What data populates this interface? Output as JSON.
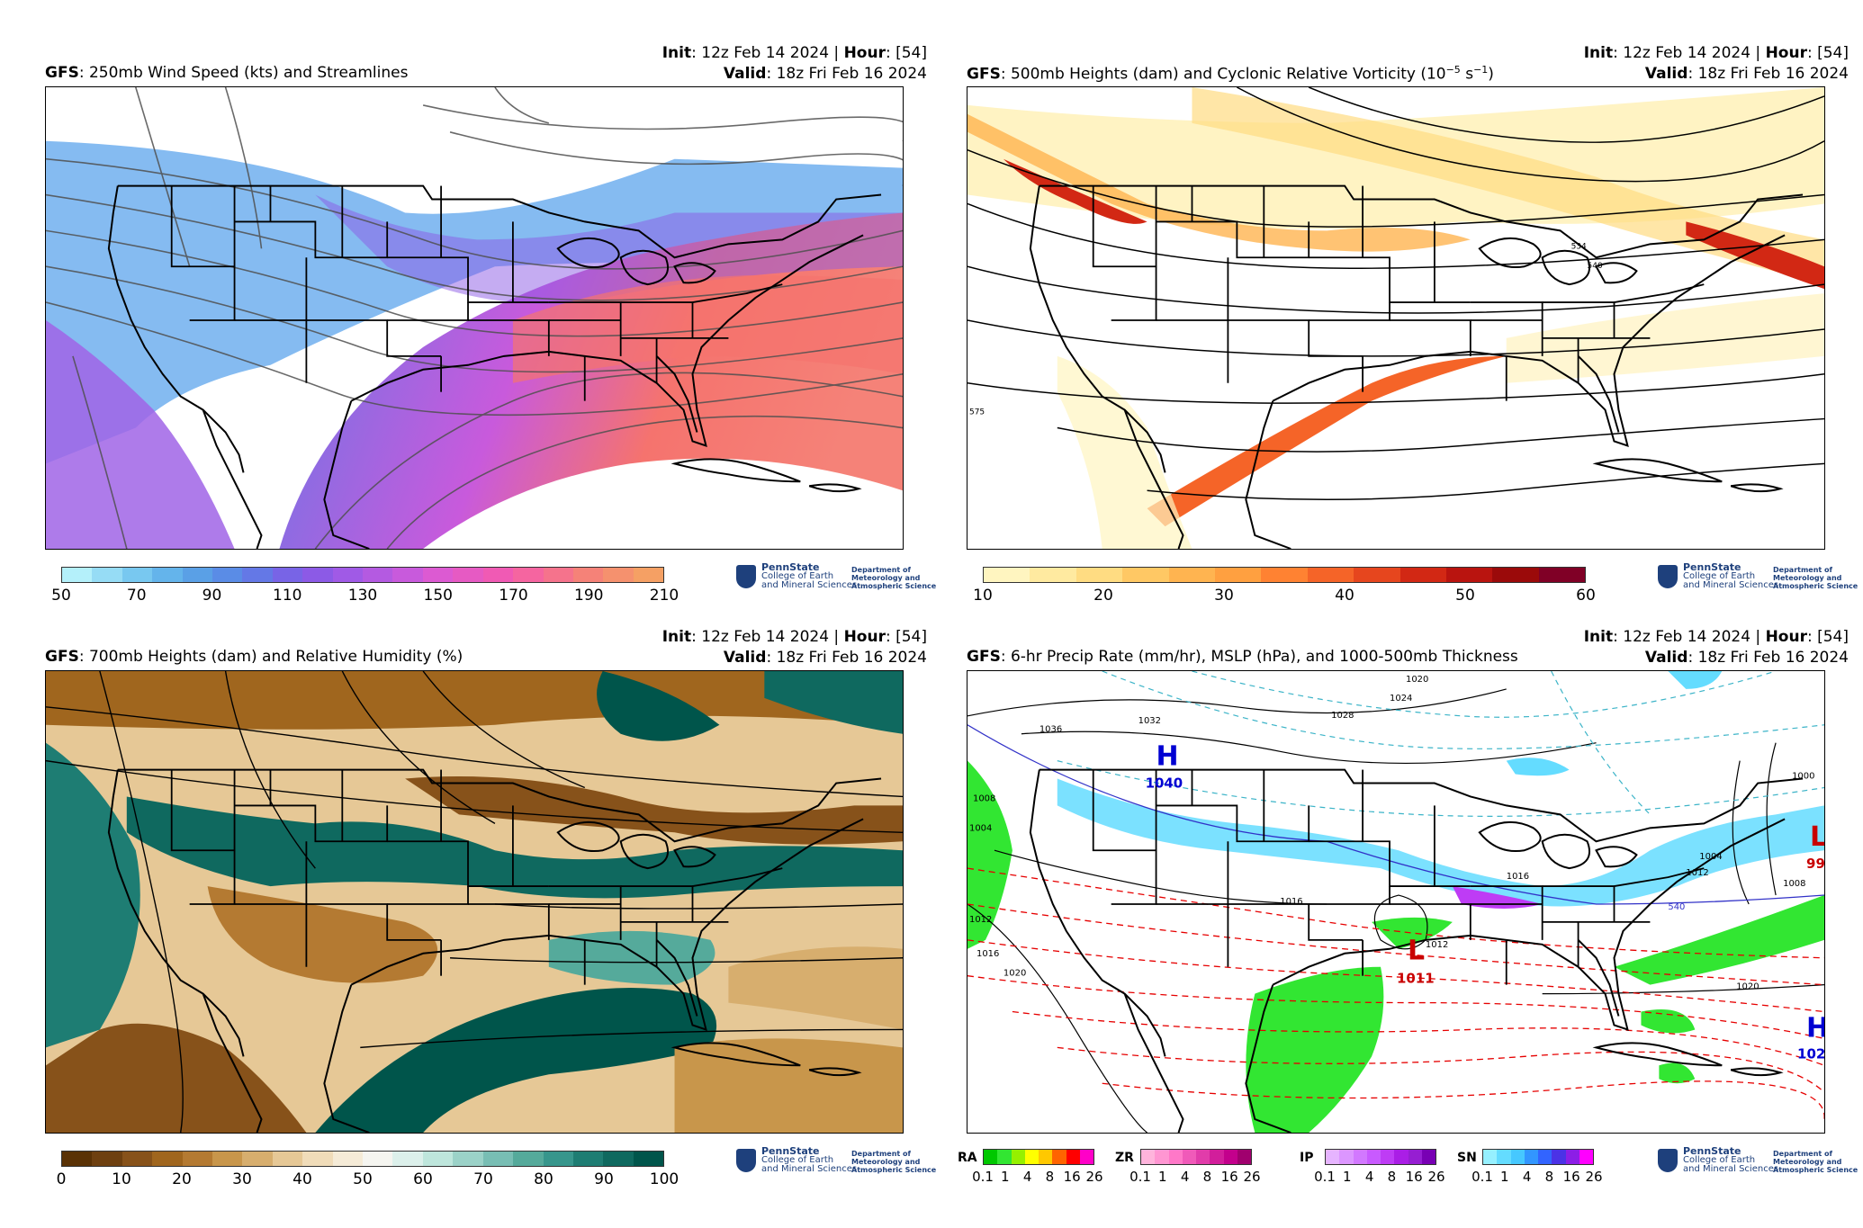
{
  "panels": [
    {
      "id": "p1",
      "model": "GFS",
      "title": ": 250mb Wind Speed (kts) and Streamlines",
      "init_label": "Init",
      "init_value": ": 12z Feb 14 2024 | ",
      "hour_label": "Hour",
      "hour_value": ": [54]",
      "valid_label": "Valid",
      "valid_value": ": 18z Fri Feb 16 2024",
      "colorbar_ticks": [
        "50",
        "70",
        "90",
        "110",
        "130",
        "150",
        "170",
        "190",
        "210"
      ],
      "colorbar_colors": [
        "#b4f0fa",
        "#96dcf5",
        "#78c8f0",
        "#64b4eb",
        "#5aa0e6",
        "#5a8ce6",
        "#6478e6",
        "#7864e6",
        "#8c5ae6",
        "#a05ae6",
        "#b45ae1",
        "#c85adc",
        "#dc5ad2",
        "#e65ac3",
        "#f05ab4",
        "#f565a0",
        "#f5738c",
        "#f58278",
        "#f5916e",
        "#f5a064"
      ]
    },
    {
      "id": "p2",
      "model": "GFS",
      "title": ": 500mb Heights (dam) and Cyclonic Relative Vorticity (10",
      "title_sup1": "−5",
      "title_mid": " s",
      "title_sup2": "−1",
      "title_end": ")",
      "init_label": "Init",
      "init_value": ": 12z Feb 14 2024 | ",
      "hour_label": "Hour",
      "hour_value": ": [54]",
      "valid_label": "Valid",
      "valid_value": ": 18z Fri Feb 16 2024",
      "colorbar_ticks": [
        "10",
        "20",
        "30",
        "40",
        "50",
        "60"
      ],
      "colorbar_colors": [
        "#fff5c0",
        "#ffeaa0",
        "#ffdc82",
        "#ffc864",
        "#ffb450",
        "#ffa040",
        "#ff8232",
        "#f56428",
        "#e6461e",
        "#d22814",
        "#b9140f",
        "#9b0a0a",
        "#800026"
      ],
      "contour_labels": [
        "575",
        "534",
        "540"
      ]
    },
    {
      "id": "p3",
      "model": "GFS",
      "title": ": 700mb Heights (dam) and Relative Humidity (%)",
      "init_label": "Init",
      "init_value": ": 12z Feb 14 2024 | ",
      "hour_label": "Hour",
      "hour_value": ": [54]",
      "valid_label": "Valid",
      "valid_value": ": 18z Fri Feb 16 2024",
      "colorbar_ticks": [
        "0",
        "10",
        "20",
        "30",
        "40",
        "50",
        "60",
        "70",
        "80",
        "90",
        "100"
      ],
      "colorbar_colors": [
        "#5a3205",
        "#6e4010",
        "#87521a",
        "#a0661e",
        "#b47a32",
        "#c8964b",
        "#d7ae6e",
        "#e6c896",
        "#f0dcb9",
        "#f5ebd7",
        "#f5f5f0",
        "#dcf0eb",
        "#bee6dc",
        "#9bd2c8",
        "#78beb4",
        "#55aa9b",
        "#37968c",
        "#1e7d73",
        "#0f695f",
        "#00554b"
      ]
    },
    {
      "id": "p4",
      "model": "GFS",
      "title": ": 6-hr Precip Rate (mm/hr), MSLP (hPa), and 1000-500mb Thickness",
      "init_label": "Init",
      "init_value": ": 12z Feb 14 2024 | ",
      "hour_label": "Hour",
      "hour_value": ": [54]",
      "valid_label": "Valid",
      "valid_value": ": 18z Fri Feb 16 2024",
      "precip_types": [
        {
          "label": "RA",
          "colors": [
            "#00c800",
            "#32e632",
            "#96f000",
            "#ffff00",
            "#ffc800",
            "#ff6400",
            "#ff0000",
            "#ff00c8"
          ]
        },
        {
          "label": "ZR",
          "colors": [
            "#ffb4dc",
            "#ff96d2",
            "#ff78c8",
            "#f05ab9",
            "#e13caa",
            "#d21e9b",
            "#c3008c",
            "#a0006e"
          ]
        },
        {
          "label": "IP",
          "colors": [
            "#e6b4ff",
            "#dc96ff",
            "#d278ff",
            "#c85aff",
            "#be3cf5",
            "#aa1ee6",
            "#961ed2",
            "#7800b4"
          ]
        },
        {
          "label": "SN",
          "colors": [
            "#96f0ff",
            "#64dcff",
            "#46c8ff",
            "#3296ff",
            "#3264ff",
            "#4b32e6",
            "#8c1ee6",
            "#ff00ff"
          ]
        }
      ],
      "precip_ticks": [
        "0.1",
        "1",
        "4",
        "8",
        "16",
        "26"
      ],
      "highs": [
        {
          "letter": "H",
          "value": "1040"
        },
        {
          "letter": "H",
          "value": "102"
        }
      ],
      "lows": [
        {
          "letter": "L",
          "value": "1011"
        },
        {
          "letter": "L",
          "value": "99"
        }
      ],
      "isobar_labels": [
        "1020",
        "1024",
        "1028",
        "1032",
        "1036",
        "1008",
        "1004",
        "1012",
        "1016",
        "1020",
        "1016",
        "1012",
        "1004",
        "1008",
        "1000",
        "1020",
        "1016",
        "1012"
      ],
      "thickness_labels": [
        "540"
      ]
    }
  ],
  "logo": {
    "line1": "PennState",
    "line2": "College of Earth",
    "line3": "and Mineral Sciences",
    "dept1": "Department of",
    "dept2": "Meteorology and",
    "dept3": "Atmospheric Science"
  },
  "colors": {
    "coastline": "#000000",
    "streamline": "#505050",
    "height_contour": "#000000",
    "thickness_dashed": "#e60000",
    "thickness_cold": "#3cb4c8",
    "high_marker": "#0000d2",
    "low_marker": "#c80000"
  }
}
